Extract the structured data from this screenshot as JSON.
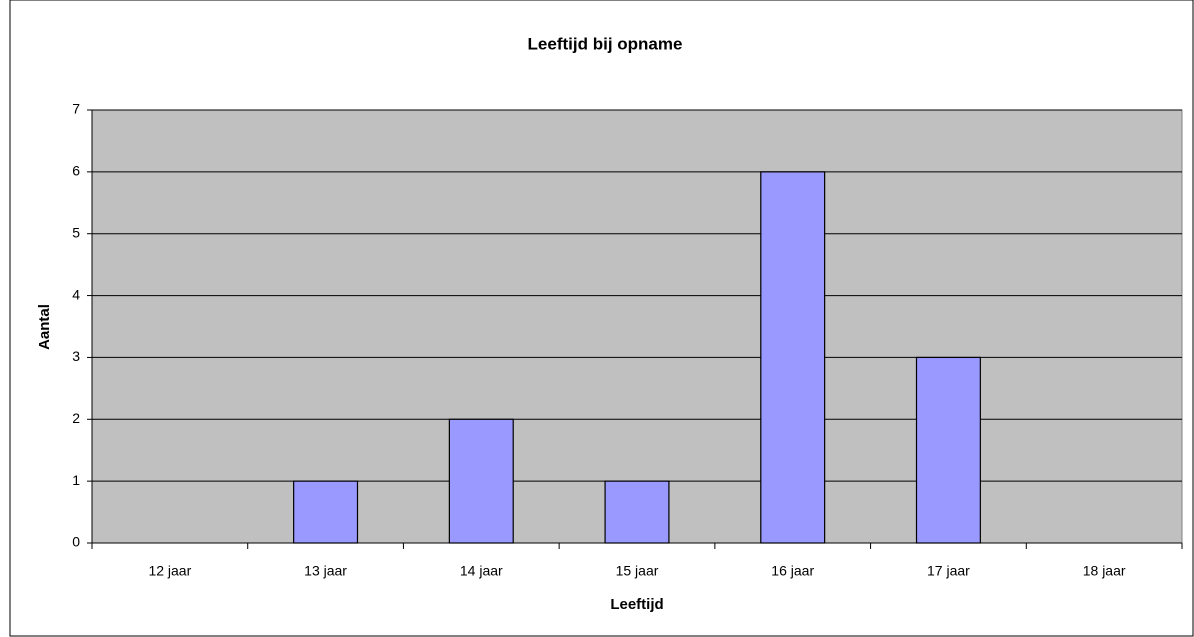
{
  "chart_data": {
    "type": "bar",
    "title": "Leeftijd bij opname",
    "x_label": "Leeftijd",
    "y_label": "Aantal",
    "categories": [
      "12 jaar",
      "13 jaar",
      "14 jaar",
      "15 jaar",
      "16 jaar",
      "17 jaar",
      "18 jaar"
    ],
    "values": [
      0,
      1,
      2,
      1,
      6,
      3,
      0
    ],
    "color": "#9999ff",
    "ylim": [
      0,
      7
    ],
    "yticks": [
      0,
      1,
      2,
      3,
      4,
      5,
      6,
      7
    ],
    "grid": true
  }
}
